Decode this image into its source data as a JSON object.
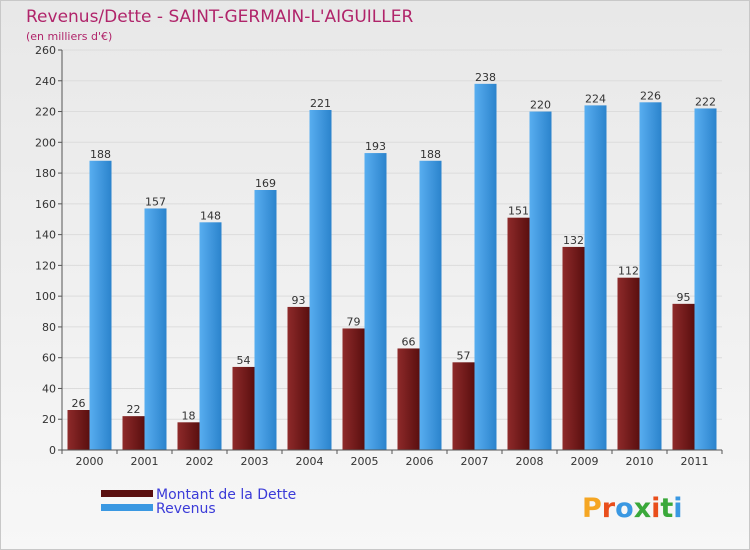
{
  "chart_data": {
    "type": "bar",
    "title": "Revenus/Dette - SAINT-GERMAIN-L'AIGUILLER",
    "subtitle": "(en milliers d'€)",
    "categories": [
      "2000",
      "2001",
      "2002",
      "2003",
      "2004",
      "2005",
      "2006",
      "2007",
      "2008",
      "2009",
      "2010",
      "2011"
    ],
    "series": [
      {
        "name": "Montant de la Dette",
        "values": [
          26,
          22,
          18,
          54,
          93,
          79,
          66,
          57,
          151,
          132,
          112,
          95
        ],
        "color": "#7a1a1a"
      },
      {
        "name": "Revenus",
        "values": [
          188,
          157,
          148,
          169,
          221,
          193,
          188,
          238,
          220,
          224,
          226,
          222
        ],
        "color": "#3a98e2"
      }
    ],
    "ylim": [
      0,
      260
    ],
    "yticks": [
      0,
      20,
      40,
      60,
      80,
      100,
      120,
      140,
      160,
      180,
      200,
      220,
      240,
      260
    ],
    "grid": true,
    "legend_position": "bottom-left"
  },
  "logo": {
    "text": "Proxiti",
    "letter_colors": [
      "#f5a623",
      "#e94e1b",
      "#3a98e2",
      "#3aa83a",
      "#e94e1b",
      "#3aa83a",
      "#3a98e2"
    ]
  }
}
